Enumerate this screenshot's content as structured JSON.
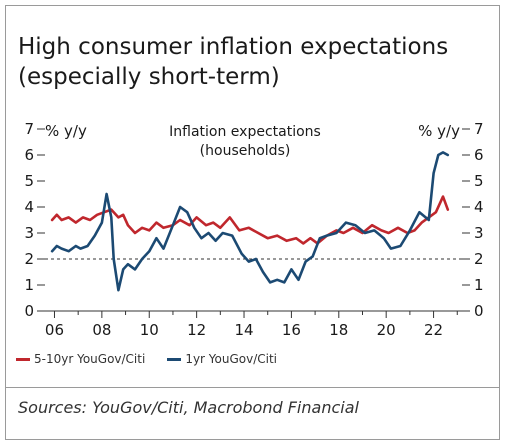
{
  "title": "High consumer inflation expectations (especially short-term)",
  "source": "Sources: YouGov/Citi, Macrobond Financial",
  "colors": {
    "series1": "#c0272d",
    "series2": "#1c4a73",
    "axis": "#333333",
    "reference": "#333333"
  },
  "chart_data": {
    "type": "line",
    "annotation": "Inflation expectations (households)",
    "left_axis_label": "% y/y",
    "right_axis_label": "% y/y",
    "ylim": [
      0,
      7
    ],
    "xlim": [
      2005.6,
      2023.2
    ],
    "yticks": [
      "0",
      "1",
      "2",
      "3",
      "4",
      "5",
      "6",
      "7"
    ],
    "xticks": [
      "06",
      "08",
      "10",
      "12",
      "14",
      "16",
      "18",
      "20",
      "22"
    ],
    "reference_line": 2,
    "grid": false,
    "legend_position": "bottom-left",
    "series": [
      {
        "name": "5-10yr YouGov/Citi",
        "x": [
          2005.9,
          2006.1,
          2006.3,
          2006.6,
          2006.9,
          2007.2,
          2007.5,
          2007.8,
          2008.1,
          2008.4,
          2008.7,
          2008.9,
          2009.1,
          2009.4,
          2009.7,
          2010.0,
          2010.3,
          2010.6,
          2011.0,
          2011.3,
          2011.7,
          2012.0,
          2012.4,
          2012.7,
          2013.0,
          2013.4,
          2013.8,
          2014.2,
          2014.6,
          2015.0,
          2015.4,
          2015.8,
          2016.2,
          2016.5,
          2016.8,
          2017.1,
          2017.5,
          2017.9,
          2018.2,
          2018.6,
          2019.0,
          2019.4,
          2019.8,
          2020.1,
          2020.5,
          2020.9,
          2021.2,
          2021.5,
          2021.8,
          2022.1,
          2022.4,
          2022.6
        ],
        "values": [
          3.5,
          3.7,
          3.5,
          3.6,
          3.4,
          3.6,
          3.5,
          3.7,
          3.8,
          3.9,
          3.6,
          3.7,
          3.3,
          3.0,
          3.2,
          3.1,
          3.4,
          3.2,
          3.3,
          3.5,
          3.3,
          3.6,
          3.3,
          3.4,
          3.2,
          3.6,
          3.1,
          3.2,
          3.0,
          2.8,
          2.9,
          2.7,
          2.8,
          2.6,
          2.8,
          2.6,
          2.9,
          3.1,
          3.0,
          3.2,
          3.0,
          3.3,
          3.1,
          3.0,
          3.2,
          3.0,
          3.1,
          3.4,
          3.6,
          3.8,
          4.4,
          3.9
        ]
      },
      {
        "name": "1yr YouGov/Citi",
        "x": [
          2005.9,
          2006.1,
          2006.3,
          2006.6,
          2006.9,
          2007.1,
          2007.4,
          2007.7,
          2008.0,
          2008.2,
          2008.4,
          2008.5,
          2008.7,
          2008.9,
          2009.1,
          2009.4,
          2009.7,
          2010.0,
          2010.3,
          2010.6,
          2011.0,
          2011.3,
          2011.6,
          2011.9,
          2012.2,
          2012.5,
          2012.8,
          2013.1,
          2013.5,
          2013.9,
          2014.2,
          2014.5,
          2014.8,
          2015.1,
          2015.4,
          2015.7,
          2016.0,
          2016.3,
          2016.6,
          2016.9,
          2017.2,
          2017.5,
          2017.9,
          2018.3,
          2018.7,
          2019.1,
          2019.5,
          2019.9,
          2020.2,
          2020.6,
          2021.0,
          2021.4,
          2021.8,
          2022.0,
          2022.2,
          2022.4,
          2022.6
        ],
        "values": [
          2.3,
          2.5,
          2.4,
          2.3,
          2.5,
          2.4,
          2.5,
          2.9,
          3.4,
          4.5,
          3.6,
          2.0,
          0.8,
          1.6,
          1.8,
          1.6,
          2.0,
          2.3,
          2.8,
          2.4,
          3.3,
          4.0,
          3.8,
          3.2,
          2.8,
          3.0,
          2.7,
          3.0,
          2.9,
          2.2,
          1.9,
          2.0,
          1.5,
          1.1,
          1.2,
          1.1,
          1.6,
          1.2,
          1.9,
          2.1,
          2.8,
          2.9,
          3.0,
          3.4,
          3.3,
          3.0,
          3.1,
          2.8,
          2.4,
          2.5,
          3.1,
          3.8,
          3.5,
          5.3,
          6.0,
          6.1,
          6.0
        ]
      }
    ]
  }
}
